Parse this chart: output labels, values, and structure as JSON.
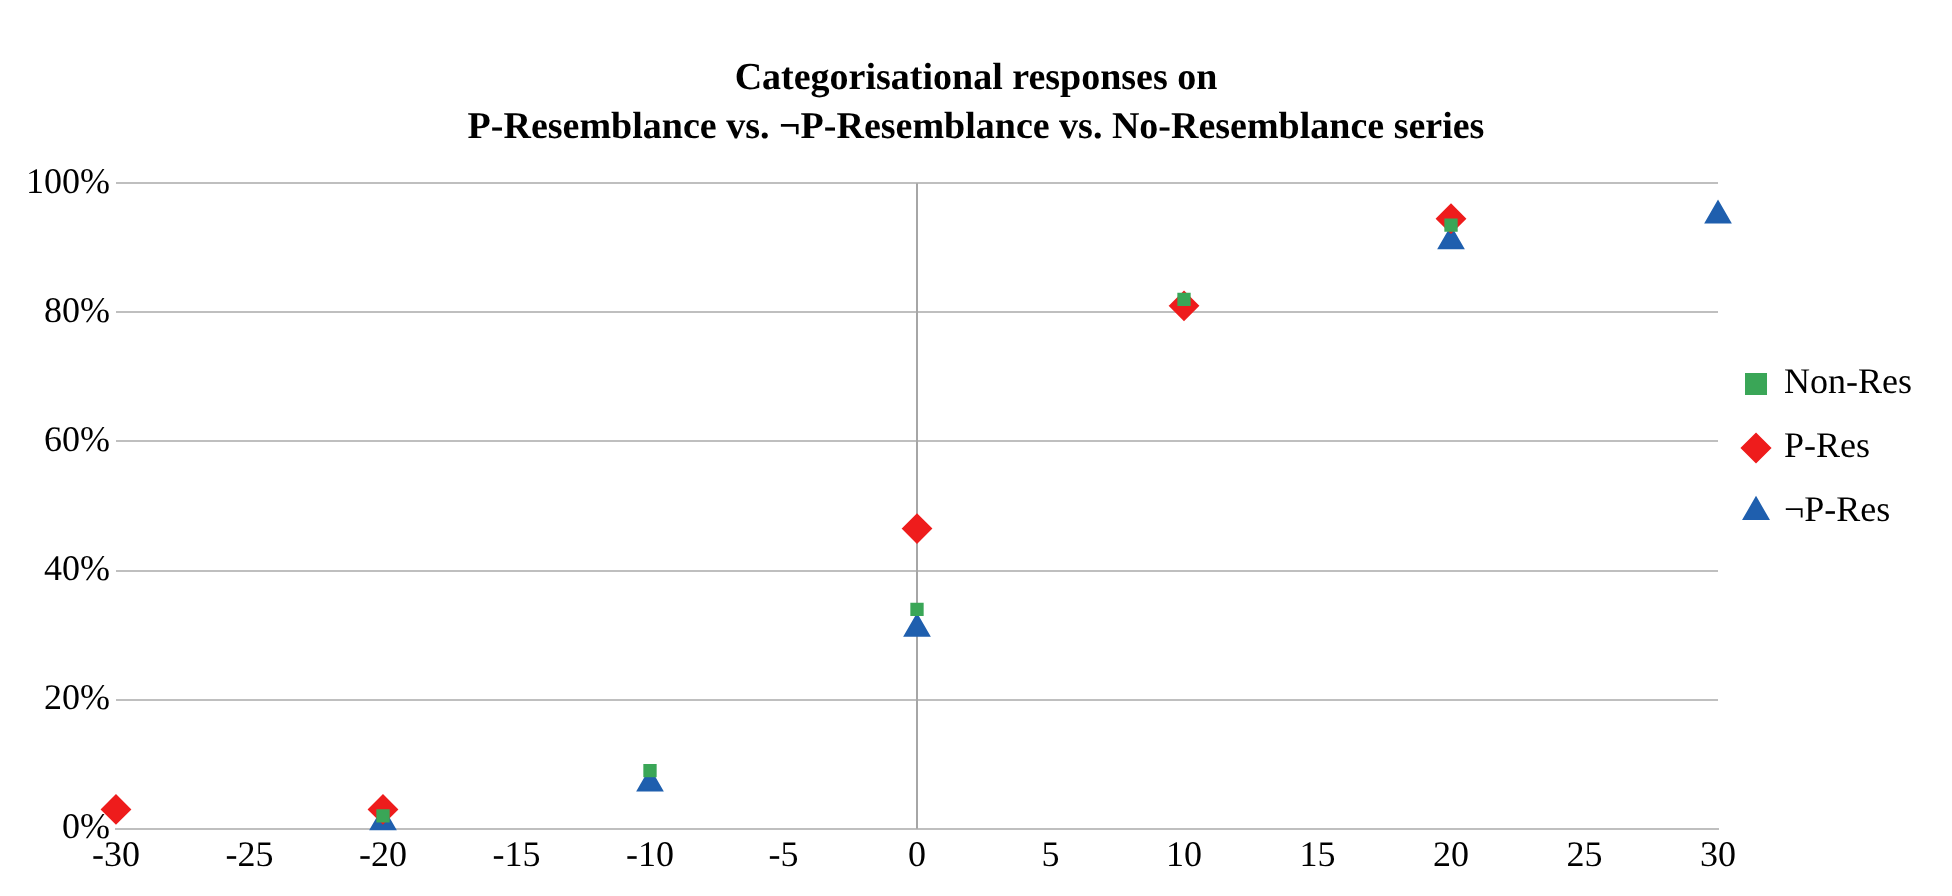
{
  "chart_data": {
    "type": "scatter",
    "title": "Categorisational responses on",
    "subtitle": "P-Resemblance vs. ¬P-Resemblance vs. No-Resemblance series",
    "x": [
      -30,
      -20,
      -10,
      0,
      10,
      20,
      30
    ],
    "series": [
      {
        "name": "¬P-Res",
        "color": "#1f5fae",
        "marker": "triangle",
        "values": [
          null,
          1,
          7,
          31,
          null,
          91,
          95
        ]
      },
      {
        "name": "P-Res",
        "color": "#ee1c1c",
        "marker": "diamond",
        "values": [
          3,
          3,
          null,
          46.5,
          81,
          94.5,
          null
        ]
      },
      {
        "name": "Non-Res",
        "color": "#3aa657",
        "marker": "square",
        "values": [
          null,
          2,
          9,
          34,
          82,
          93.5,
          null
        ]
      }
    ],
    "xlim": [
      -30,
      30
    ],
    "xticks": [
      -30,
      -25,
      -20,
      -15,
      -10,
      -5,
      0,
      5,
      10,
      15,
      20,
      25,
      30
    ],
    "ylim": [
      0,
      100
    ],
    "yticks": [
      {
        "value": 0,
        "label": "0%"
      },
      {
        "value": 20,
        "label": "20%"
      },
      {
        "value": 40,
        "label": "40%"
      },
      {
        "value": 60,
        "label": "60%"
      },
      {
        "value": 80,
        "label": "80%"
      },
      {
        "value": 100,
        "label": "100%"
      }
    ],
    "ref_lines": [
      {
        "axis": "x",
        "value": 0,
        "color": "#a6a6a6"
      }
    ],
    "grid": "y",
    "legend": "right"
  }
}
